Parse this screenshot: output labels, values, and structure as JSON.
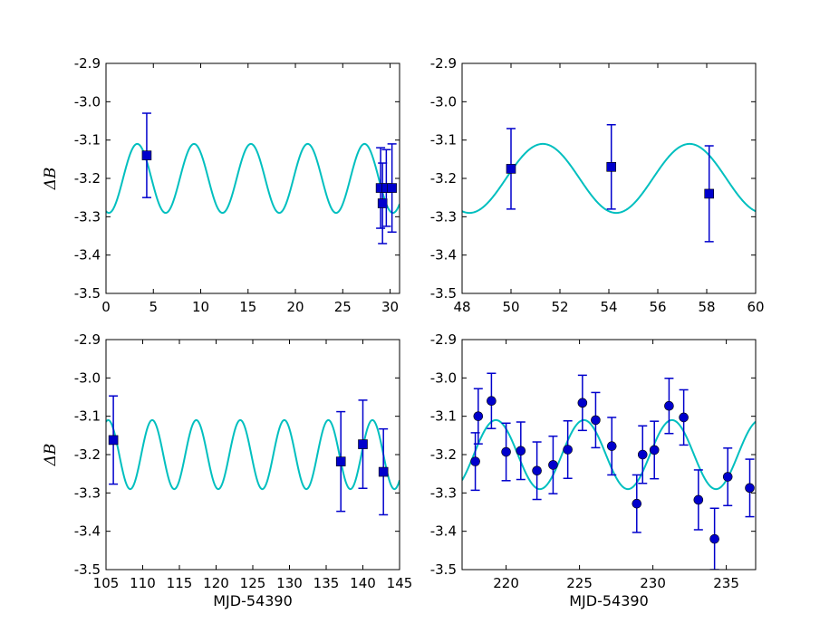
{
  "colors": {
    "model": "#00bfbf",
    "points": "#0000cc",
    "errorbar": "#0000cc",
    "axes": "#000000"
  },
  "chart_data": [
    {
      "type": "scatter",
      "ylabel": "ΔB",
      "xlabel": "",
      "xlim": [
        0,
        31
      ],
      "ylim": [
        -3.5,
        -2.9
      ],
      "xticks": [
        0,
        5,
        10,
        15,
        20,
        25,
        30
      ],
      "yticks": [
        -3.5,
        -3.4,
        -3.3,
        -3.2,
        -3.1,
        -3.0,
        -2.9
      ],
      "ytick_labels": [
        "-3.5",
        "-3.4",
        "-3.3",
        "-3.2",
        "-3.1",
        "-3.0",
        "-2.9"
      ],
      "marker": "square",
      "model": {
        "mean": -3.2,
        "amplitude": 0.09,
        "period": 6.0,
        "peak_x": 9.3
      },
      "points": [
        {
          "x": 4.3,
          "y": -3.14,
          "err": 0.11
        },
        {
          "x": 29.0,
          "y": -3.225,
          "err": 0.105
        },
        {
          "x": 29.2,
          "y": -3.265,
          "err": 0.105
        },
        {
          "x": 29.6,
          "y": -3.225,
          "err": 0.1
        },
        {
          "x": 30.2,
          "y": -3.225,
          "err": 0.115
        }
      ]
    },
    {
      "type": "scatter",
      "ylabel": "",
      "xlabel": "",
      "xlim": [
        48,
        60
      ],
      "ylim": [
        -3.5,
        -2.9
      ],
      "xticks": [
        48,
        50,
        52,
        54,
        56,
        58,
        60
      ],
      "yticks": [
        -3.5,
        -3.4,
        -3.3,
        -3.2,
        -3.1,
        -3.0,
        -2.9
      ],
      "ytick_labels": [
        "-3.5",
        "-3.4",
        "-3.3",
        "-3.2",
        "-3.1",
        "-3.0",
        "-2.9"
      ],
      "marker": "square",
      "model": {
        "mean": -3.2,
        "amplitude": 0.09,
        "period": 6.0,
        "peak_x": 51.3
      },
      "points": [
        {
          "x": 50.0,
          "y": -3.175,
          "err": 0.105
        },
        {
          "x": 54.1,
          "y": -3.17,
          "err": 0.11
        },
        {
          "x": 58.1,
          "y": -3.24,
          "err": 0.125
        }
      ]
    },
    {
      "type": "scatter",
      "ylabel": "ΔB",
      "xlabel": "MJD-54390",
      "xlim": [
        105,
        145
      ],
      "ylim": [
        -3.5,
        -2.9
      ],
      "xticks": [
        105,
        110,
        115,
        120,
        125,
        130,
        135,
        140,
        145
      ],
      "yticks": [
        -3.5,
        -3.4,
        -3.3,
        -3.2,
        -3.1,
        -3.0,
        -2.9
      ],
      "ytick_labels": [
        "-3.5",
        "-3.4",
        "-3.3",
        "-3.2",
        "-3.1",
        "-3.0",
        "-2.9"
      ],
      "marker": "square",
      "model": {
        "mean": -3.2,
        "amplitude": 0.09,
        "period": 6.0,
        "peak_x": 111.3
      },
      "points": [
        {
          "x": 106.0,
          "y": -3.162,
          "err": 0.115
        },
        {
          "x": 137.0,
          "y": -3.218,
          "err": 0.13
        },
        {
          "x": 140.0,
          "y": -3.173,
          "err": 0.115
        },
        {
          "x": 142.8,
          "y": -3.245,
          "err": 0.112
        }
      ]
    },
    {
      "type": "scatter",
      "ylabel": "",
      "xlabel": "MJD-54390",
      "xlim": [
        217,
        237
      ],
      "ylim": [
        -3.5,
        -2.9
      ],
      "xticks": [
        220,
        225,
        230,
        235
      ],
      "yticks": [
        -3.5,
        -3.4,
        -3.3,
        -3.2,
        -3.1,
        -3.0,
        -2.9
      ],
      "ytick_labels": [
        "-3.5",
        "-3.4",
        "-3.3",
        "-3.2",
        "-3.1",
        "-3.0",
        "-2.9"
      ],
      "marker": "circle",
      "model": {
        "mean": -3.2,
        "amplitude": 0.09,
        "period": 6.0,
        "peak_x": 225.3
      },
      "points": [
        {
          "x": 217.9,
          "y": -3.218,
          "err": 0.075
        },
        {
          "x": 218.1,
          "y": -3.1,
          "err": 0.072
        },
        {
          "x": 219.0,
          "y": -3.06,
          "err": 0.072
        },
        {
          "x": 220.0,
          "y": -3.193,
          "err": 0.075
        },
        {
          "x": 221.0,
          "y": -3.19,
          "err": 0.075
        },
        {
          "x": 222.1,
          "y": -3.242,
          "err": 0.075
        },
        {
          "x": 223.2,
          "y": -3.227,
          "err": 0.075
        },
        {
          "x": 224.2,
          "y": -3.187,
          "err": 0.075
        },
        {
          "x": 225.2,
          "y": -3.065,
          "err": 0.072
        },
        {
          "x": 226.1,
          "y": -3.11,
          "err": 0.072
        },
        {
          "x": 227.2,
          "y": -3.178,
          "err": 0.075
        },
        {
          "x": 228.9,
          "y": -3.328,
          "err": 0.075
        },
        {
          "x": 229.3,
          "y": -3.2,
          "err": 0.075
        },
        {
          "x": 230.1,
          "y": -3.188,
          "err": 0.075
        },
        {
          "x": 231.1,
          "y": -3.073,
          "err": 0.072
        },
        {
          "x": 232.1,
          "y": -3.103,
          "err": 0.072
        },
        {
          "x": 233.1,
          "y": -3.318,
          "err": 0.078
        },
        {
          "x": 234.2,
          "y": -3.42,
          "err": 0.08
        },
        {
          "x": 235.1,
          "y": -3.258,
          "err": 0.075
        },
        {
          "x": 236.6,
          "y": -3.287,
          "err": 0.075
        }
      ]
    }
  ]
}
